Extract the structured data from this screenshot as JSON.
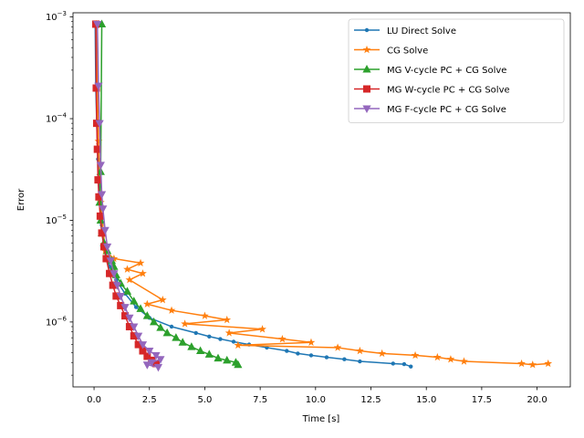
{
  "chart_data": {
    "type": "line",
    "title": "",
    "xlabel": "Time [s]",
    "ylabel": "Error",
    "xlim": [
      -0.95,
      21.5
    ],
    "ylim": [
      2.3e-07,
      0.0011
    ],
    "yscale": "log",
    "xticks": [
      0,
      2.5,
      5,
      7.5,
      10,
      12.5,
      15,
      17.5,
      20
    ],
    "xtick_labels": [
      "0.0",
      "2.5",
      "5.0",
      "7.5",
      "10.0",
      "12.5",
      "15.0",
      "17.5",
      "20.0"
    ],
    "yticks": [
      1e-06,
      1e-05,
      0.0001,
      0.001
    ],
    "ytick_labels": [
      "10",
      "10",
      "10",
      "10"
    ],
    "ytick_exponents": [
      "−6",
      "−5",
      "−4",
      "−3"
    ],
    "legend_position": "upper-right",
    "series": [
      {
        "name": "LU Direct Solve",
        "color": "#1f77b4",
        "marker": "dot",
        "x": [
          0.05,
          0.08,
          0.12,
          0.18,
          0.25,
          0.35,
          0.5,
          0.7,
          1.0,
          1.4,
          1.9,
          2.5,
          3.5,
          4.6,
          5.2,
          5.7,
          6.3,
          7.0,
          7.8,
          8.7,
          9.2,
          9.8,
          10.5,
          11.3,
          12.0,
          13.5,
          14.0,
          14.3
        ],
        "y": [
          0.00085,
          0.0002,
          9e-05,
          4e-05,
          1.8e-05,
          9e-06,
          5e-06,
          3.5e-06,
          2.6e-06,
          1.9e-06,
          1.4e-06,
          1.1e-06,
          9e-07,
          7.8e-07,
          7.2e-07,
          6.8e-07,
          6.4e-07,
          6e-07,
          5.6e-07,
          5.2e-07,
          4.9e-07,
          4.7e-07,
          4.5e-07,
          4.3e-07,
          4.1e-07,
          3.9e-07,
          3.85e-07,
          3.65e-07
        ]
      },
      {
        "name": "CG Solve",
        "color": "#ff7f0e",
        "marker": "star",
        "x": [
          0.1,
          0.15,
          0.2,
          0.3,
          0.5,
          0.9,
          2.1,
          1.5,
          2.2,
          1.6,
          3.1,
          2.4,
          3.5,
          5.0,
          6.0,
          4.1,
          7.6,
          6.1,
          8.5,
          9.8,
          6.5,
          11.0,
          12.0,
          13.0,
          14.5,
          15.5,
          16.1,
          16.7,
          19.3,
          19.8,
          20.5
        ],
        "y": [
          0.00085,
          0.00021,
          6e-05,
          1.5e-05,
          5e-06,
          4.2e-06,
          3.8e-06,
          3.3e-06,
          3e-06,
          2.6e-06,
          1.65e-06,
          1.5e-06,
          1.3e-06,
          1.15e-06,
          1.05e-06,
          9.6e-07,
          8.5e-07,
          7.8e-07,
          6.8e-07,
          6.3e-07,
          5.9e-07,
          5.6e-07,
          5.2e-07,
          4.9e-07,
          4.7e-07,
          4.5e-07,
          4.3e-07,
          4.1e-07,
          3.9e-07,
          3.8e-07,
          3.9e-07
        ]
      },
      {
        "name": "MG V-cycle PC + CG Solve",
        "color": "#2ca02c",
        "marker": "triangle-up",
        "x": [
          0.35,
          0.3,
          0.25,
          0.3,
          0.35,
          0.45,
          0.6,
          0.8,
          0.9,
          1.0,
          1.2,
          1.5,
          1.8,
          2.1,
          2.4,
          2.7,
          3.0,
          3.3,
          3.7,
          4.0,
          4.4,
          4.8,
          5.2,
          5.6,
          6.0,
          6.4,
          6.5
        ],
        "y": [
          0.00085,
          3e-05,
          1.5e-05,
          1e-05,
          7.5e-06,
          6e-06,
          5e-06,
          4e-06,
          3.5e-06,
          2.9e-06,
          2.4e-06,
          2e-06,
          1.6e-06,
          1.35e-06,
          1.15e-06,
          1e-06,
          8.8e-07,
          7.8e-07,
          7e-07,
          6.3e-07,
          5.7e-07,
          5.2e-07,
          4.8e-07,
          4.4e-07,
          4.2e-07,
          4e-07,
          3.8e-07
        ]
      },
      {
        "name": "MG W-cycle PC + CG Solve",
        "color": "#d62728",
        "marker": "square",
        "x": [
          0.08,
          0.1,
          0.12,
          0.15,
          0.18,
          0.22,
          0.28,
          0.35,
          0.45,
          0.55,
          0.7,
          0.85,
          1.0,
          1.2,
          1.4,
          1.6,
          1.8,
          2.0,
          2.2,
          2.4,
          2.6,
          2.8
        ],
        "y": [
          0.00085,
          0.0002,
          9e-05,
          5e-05,
          2.5e-05,
          1.7e-05,
          1.1e-05,
          7.5e-06,
          5.5e-06,
          4.2e-06,
          3e-06,
          2.3e-06,
          1.8e-06,
          1.45e-06,
          1.15e-06,
          9e-07,
          7.3e-07,
          6e-07,
          5.2e-07,
          4.6e-07,
          4.2e-07,
          3.9e-07
        ]
      },
      {
        "name": "MG F-cycle PC + CG Solve",
        "color": "#9467bd",
        "marker": "triangle-down",
        "x": [
          0.15,
          0.2,
          0.25,
          0.3,
          0.35,
          0.4,
          0.5,
          0.6,
          0.75,
          0.9,
          1.05,
          1.2,
          1.4,
          1.6,
          1.8,
          2.0,
          2.2,
          2.5,
          2.8,
          3.0,
          2.6,
          2.4,
          2.9
        ],
        "y": [
          0.00085,
          0.00021,
          9e-05,
          3.5e-05,
          1.8e-05,
          1.3e-05,
          8e-06,
          5.5e-06,
          4e-06,
          3e-06,
          2.3e-06,
          1.8e-06,
          1.4e-06,
          1.1e-06,
          9e-07,
          7.3e-07,
          6e-07,
          5.2e-07,
          4.7e-07,
          4.3e-07,
          4e-07,
          3.8e-07,
          3.6e-07
        ]
      }
    ]
  }
}
